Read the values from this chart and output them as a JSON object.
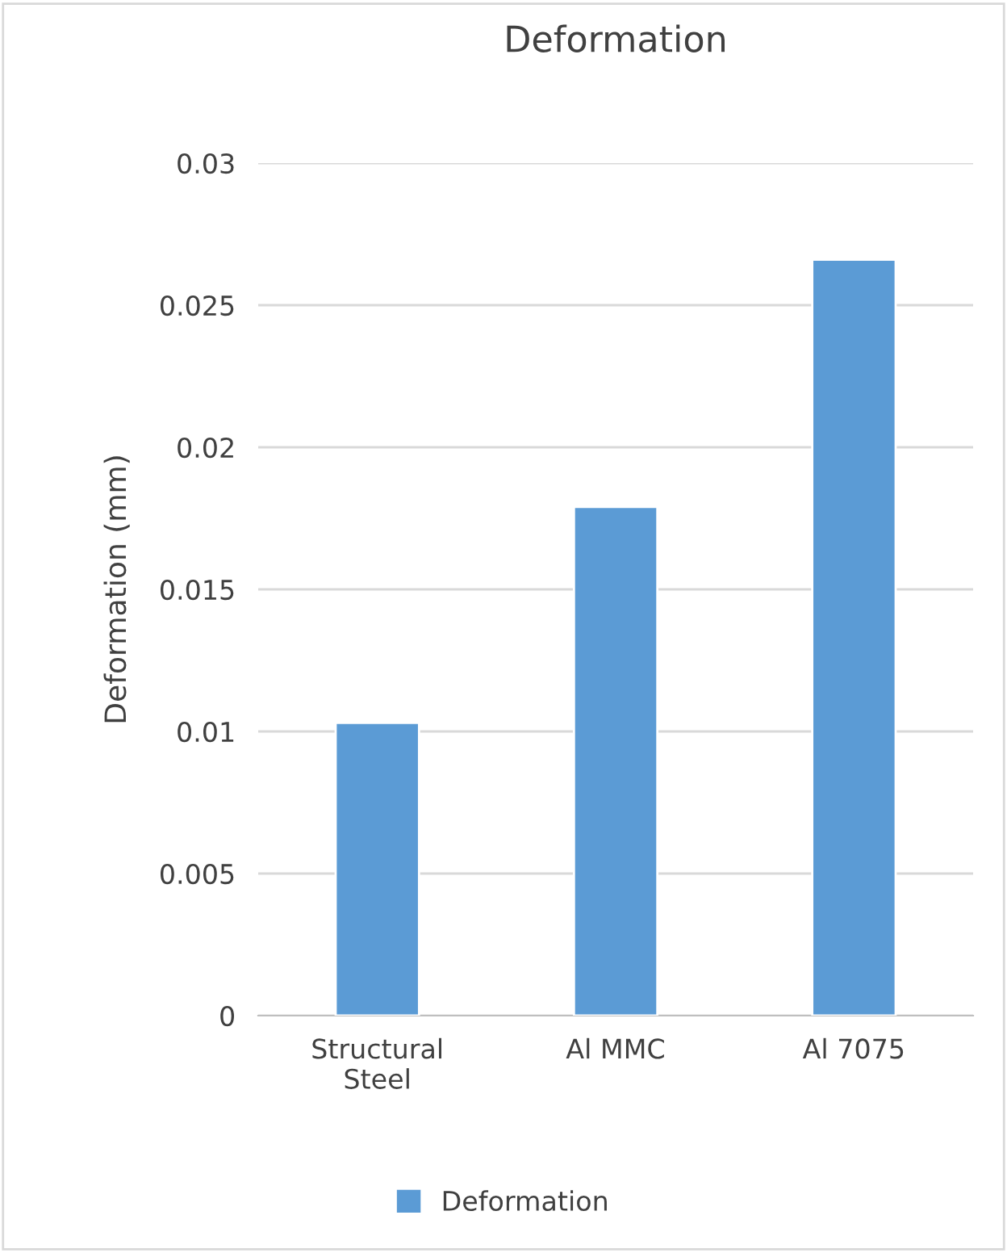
{
  "chart_data": {
    "type": "bar",
    "title": "Deformation",
    "ylabel": "Deformation (mm)",
    "categories": [
      "Structural\nSteel",
      "Al MMC",
      "Al 7075"
    ],
    "series": [
      {
        "name": "Deformation",
        "color": "#5b9bd5",
        "values": [
          0.0103,
          0.0179,
          0.0266
        ]
      }
    ],
    "ylim": [
      0,
      0.03
    ],
    "yticks": [
      0,
      0.005,
      0.01,
      0.015,
      0.02,
      0.025,
      0.03
    ],
    "grid": "y",
    "legend": "bottom"
  }
}
